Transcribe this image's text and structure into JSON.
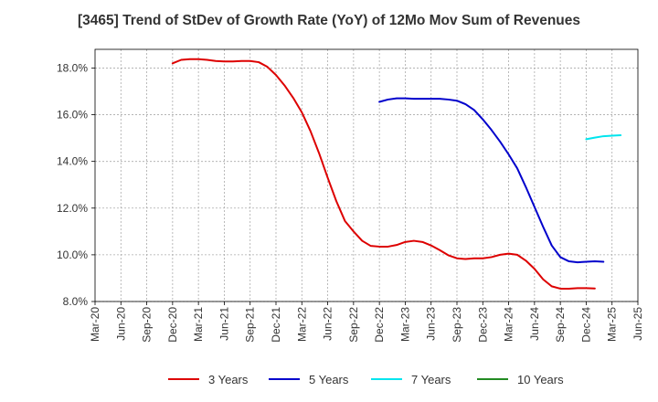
{
  "chart_data": {
    "type": "line",
    "title": "[3465]  Trend of StDev of Growth Rate (YoY) of 12Mo Mov Sum of Revenues",
    "xlabel": "",
    "ylabel": "",
    "x_tick_labels": [
      "Mar-20",
      "Jun-20",
      "Sep-20",
      "Dec-20",
      "Mar-21",
      "Jun-21",
      "Sep-21",
      "Dec-21",
      "Mar-22",
      "Jun-22",
      "Sep-22",
      "Dec-22",
      "Mar-23",
      "Jun-23",
      "Sep-23",
      "Dec-23",
      "Mar-24",
      "Jun-24",
      "Sep-24",
      "Dec-24",
      "Mar-25",
      "Jun-25"
    ],
    "y_tick_labels": [
      "8.0%",
      "10.0%",
      "12.0%",
      "14.0%",
      "16.0%",
      "18.0%"
    ],
    "y_ticks": [
      8,
      10,
      12,
      14,
      16,
      18
    ],
    "ylim": [
      8,
      18.8
    ],
    "grid": true,
    "legend_position": "bottom",
    "series": [
      {
        "name": "3 Years",
        "color": "#dd0000",
        "start_month": 9,
        "values": [
          18.2,
          18.35,
          18.38,
          18.38,
          18.35,
          18.3,
          18.28,
          18.28,
          18.3,
          18.3,
          18.25,
          18.05,
          17.7,
          17.25,
          16.72,
          16.1,
          15.3,
          14.35,
          13.3,
          12.3,
          11.45,
          11.0,
          10.6,
          10.38,
          10.35,
          10.35,
          10.42,
          10.55,
          10.6,
          10.55,
          10.4,
          10.2,
          9.98,
          9.85,
          9.82,
          9.85,
          9.85,
          9.9,
          10.0,
          10.05,
          10.0,
          9.75,
          9.4,
          8.95,
          8.65,
          8.55,
          8.55,
          8.57,
          8.57,
          8.56
        ]
      },
      {
        "name": "5 Years",
        "color": "#0000cc",
        "start_month": 33,
        "values": [
          16.55,
          16.65,
          16.7,
          16.7,
          16.68,
          16.68,
          16.68,
          16.68,
          16.65,
          16.6,
          16.45,
          16.2,
          15.8,
          15.35,
          14.85,
          14.3,
          13.7,
          12.9,
          12.05,
          11.2,
          10.4,
          9.9,
          9.72,
          9.68,
          9.7,
          9.72,
          9.7
        ]
      },
      {
        "name": "7 Years",
        "color": "#00e5ee",
        "start_month": 57,
        "values": [
          14.95,
          15.02,
          15.08,
          15.1,
          15.12
        ]
      },
      {
        "name": "10 Years",
        "color": "#228b22",
        "start_month": 0,
        "values": []
      }
    ]
  }
}
